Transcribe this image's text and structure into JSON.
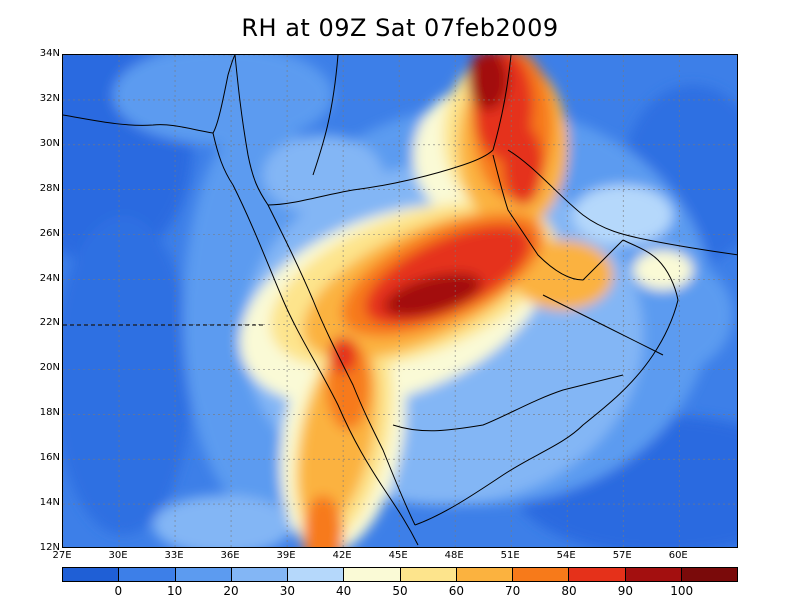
{
  "title": "RH at 09Z Sat 07feb2009",
  "map": {
    "lat_labels": [
      "34N",
      "32N",
      "30N",
      "28N",
      "26N",
      "24N",
      "22N",
      "20N",
      "18N",
      "16N",
      "14N",
      "12N"
    ],
    "lon_labels": [
      "27E",
      "30E",
      "33E",
      "36E",
      "39E",
      "42E",
      "45E",
      "48E",
      "51E",
      "54E",
      "57E",
      "60E"
    ],
    "lon_range": [
      27,
      63.2
    ],
    "lat_range": [
      12,
      34
    ]
  },
  "legend": {
    "labels": [
      "0",
      "10",
      "20",
      "30",
      "40",
      "50",
      "60",
      "70",
      "80",
      "90",
      "100"
    ],
    "colors": [
      "#1f5fd6",
      "#3d7fe8",
      "#5c9bf0",
      "#83b6f5",
      "#b5d8fb",
      "#fafad6",
      "#fde48c",
      "#fbb23f",
      "#f77a1a",
      "#e5311a",
      "#a30f0f",
      "#7a0a0a"
    ]
  },
  "chart_data": {
    "type": "heatmap",
    "title": "RH at 09Z Sat 07feb2009",
    "xlabel": "",
    "ylabel": "",
    "x_ticks": [
      "27E",
      "30E",
      "33E",
      "36E",
      "39E",
      "42E",
      "45E",
      "48E",
      "51E",
      "54E",
      "57E",
      "60E"
    ],
    "y_ticks": [
      "12N",
      "14N",
      "16N",
      "18N",
      "20N",
      "22N",
      "24N",
      "26N",
      "28N",
      "30N",
      "32N",
      "34N"
    ],
    "colorbar_levels": [
      0,
      10,
      20,
      30,
      40,
      50,
      60,
      70,
      80,
      90,
      100
    ]
  }
}
